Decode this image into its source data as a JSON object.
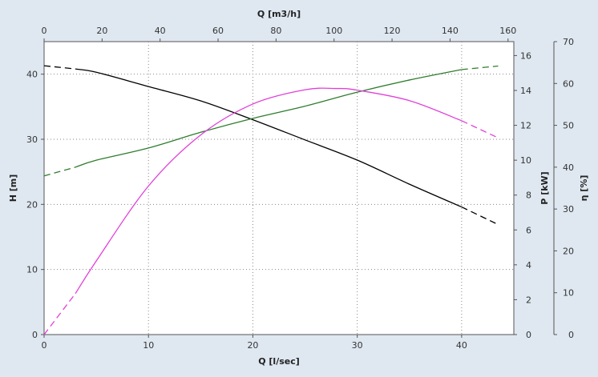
{
  "chart_data": {
    "type": "line",
    "title": "",
    "grid": true,
    "x_axis": {
      "label": "Q [l/sec]",
      "range": [
        0,
        45
      ],
      "ticks": [
        0,
        10,
        20,
        30,
        40
      ]
    },
    "x2_axis": {
      "label": "Q [m3/h]",
      "range": [
        0,
        162
      ],
      "ticks": [
        0,
        20,
        40,
        60,
        80,
        100,
        120,
        140,
        160
      ]
    },
    "y_axis": {
      "label": "H [m]",
      "range": [
        0,
        45
      ],
      "ticks": [
        0,
        10,
        20,
        30,
        40
      ]
    },
    "y2_axis": {
      "label": "P [kW]",
      "range": [
        0,
        16.8
      ],
      "ticks": [
        0,
        2,
        4,
        6,
        8,
        10,
        12,
        14,
        16
      ]
    },
    "y3_axis": {
      "label": "η [%]",
      "range": [
        0,
        70
      ],
      "ticks": [
        0,
        10,
        20,
        30,
        40,
        50,
        60,
        70
      ]
    },
    "series": [
      {
        "axis": "y",
        "color": "#000000",
        "x": [
          0,
          3,
          5,
          10,
          15,
          20,
          25,
          30,
          35,
          40,
          43.5
        ],
        "values": [
          41.3,
          40.8,
          40.3,
          38.1,
          35.9,
          33.0,
          29.9,
          26.8,
          23.1,
          19.6,
          16.9
        ],
        "dashed_until": 3,
        "dashed_from": 40
      },
      {
        "axis": "y2",
        "color": "#2e7d2e",
        "x": [
          0,
          3,
          5,
          10,
          15,
          20,
          25,
          30,
          35,
          40,
          43.5
        ],
        "values": [
          9.1,
          9.6,
          10.0,
          10.7,
          11.6,
          12.4,
          13.1,
          13.9,
          14.6,
          15.2,
          15.4
        ],
        "dashed_until": 3,
        "dashed_from": 40
      },
      {
        "axis": "y3",
        "color": "#e040d8",
        "x": [
          0,
          3,
          5,
          10,
          15,
          20,
          25,
          28,
          30,
          35,
          40,
          43.5
        ],
        "values": [
          0,
          9.8,
          17.6,
          35.5,
          47.7,
          55.1,
          58.5,
          58.8,
          58.4,
          55.9,
          51.1,
          47.0
        ],
        "dashed_until": 3,
        "dashed_from": 40
      }
    ]
  }
}
